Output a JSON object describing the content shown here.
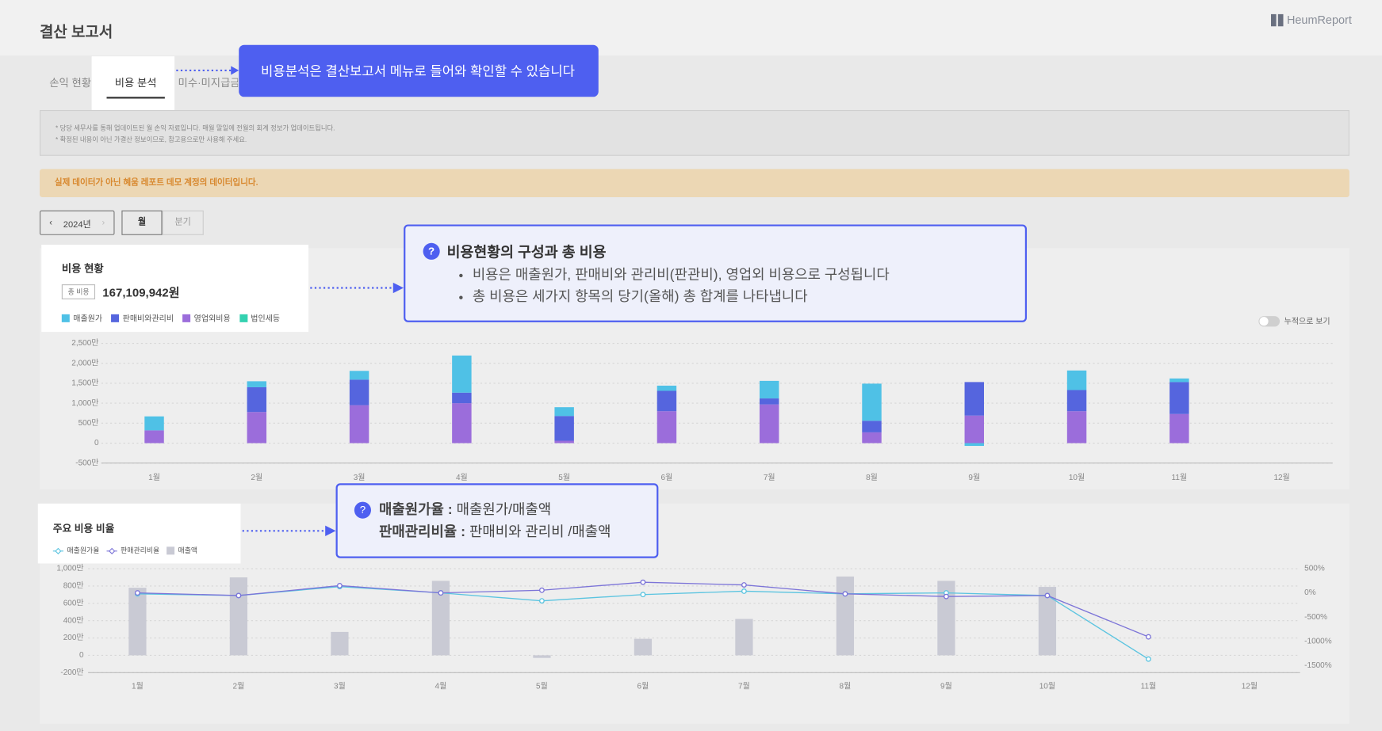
{
  "header": {
    "title": "결산 보고서",
    "logo": "HeumReport"
  },
  "tabs": [
    "손익 현황",
    "비용 분석",
    "미수·미지급금"
  ],
  "tab_tooltip": "비용분석은 결산보고서 메뉴로 들어와 확인할 수 있습니다",
  "notice": [
    "* 당당 세무사를 통해 업데이트된 월 손익 자료입니다. 매월 말일에 전월의 회계 정보가 업데이트됩니다.",
    "* 확정된 내용이 아닌 가결산 정보이므로, 참고용으로만 사용해 주세요."
  ],
  "banner": "실제 데이터가 아닌 혜움 레포트 데모 계정의 데이터입니다.",
  "controls": {
    "year": "2024년",
    "period": [
      "월",
      "분기"
    ]
  },
  "cost_card": {
    "title": "비용 현황",
    "total_label": "총 비용",
    "total": "167,109,942원",
    "toggle": "누적으로 보기"
  },
  "cost_callout": {
    "title": "비용현황의 구성과 총 비용",
    "items": [
      "비용은 매출원가, 판매비와 관리비(판관비), 영업외 비용으로 구성됩니다",
      "총 비용은 세가지 항목의 당기(올해) 총 합계를 나타냅니다"
    ]
  },
  "ratio_card": {
    "title": "주요 비용 비율"
  },
  "ratio_callout": {
    "lines": [
      {
        "term": "매출원가율 :",
        "desc": "매출원가/매출액"
      },
      {
        "term": "판매관리비율 :",
        "desc": "판매비와 관리비 /매출액"
      }
    ]
  },
  "chart_data": [
    {
      "type": "bar",
      "stacked": true,
      "grid": true,
      "categories": [
        "1월",
        "2월",
        "3월",
        "4월",
        "5월",
        "6월",
        "7월",
        "8월",
        "9월",
        "10월",
        "11월",
        "12월"
      ],
      "ylim": [
        -500,
        2500
      ],
      "yticks": [
        {
          "value": -500,
          "label": "-500만"
        },
        0,
        {
          "value": 500,
          "label": "500만"
        },
        {
          "value": 1000,
          "label": "1,000만"
        },
        {
          "value": 1500,
          "label": "1,500만"
        },
        {
          "value": 2000,
          "label": "2,000만"
        },
        {
          "value": 2500,
          "label": "2,500만"
        }
      ],
      "series": [
        {
          "name": "영업외비용",
          "color": "#9b6ddb",
          "values": [
            320,
            780,
            950,
            1000,
            60,
            800,
            970,
            270,
            690,
            800,
            730,
            null
          ]
        },
        {
          "name": "판매비와관리비",
          "color": "#5565de",
          "values": [
            0,
            620,
            640,
            265,
            620,
            510,
            150,
            290,
            840,
            530,
            800,
            null
          ]
        },
        {
          "name": "매출원가",
          "color": "#4fc1e6",
          "values": [
            350,
            150,
            220,
            930,
            220,
            130,
            440,
            930,
            -70,
            490,
            90,
            null
          ]
        },
        {
          "name": "법인세등",
          "color": "#33d1b0",
          "values": [
            0,
            0,
            0,
            0,
            0,
            0,
            0,
            0,
            0,
            0,
            0,
            null
          ]
        }
      ],
      "legend_order": [
        2,
        1,
        0,
        3
      ]
    },
    {
      "type": "combo",
      "grid": true,
      "categories": [
        "1월",
        "2월",
        "3월",
        "4월",
        "5월",
        "6월",
        "7월",
        "8월",
        "9월",
        "10월",
        "11월",
        "12월"
      ],
      "ylim": [
        -200,
        1000
      ],
      "yticks": [
        {
          "value": -200,
          "label": "-200만"
        },
        0,
        {
          "value": 200,
          "label": "200만"
        },
        {
          "value": 400,
          "label": "400만"
        },
        {
          "value": 600,
          "label": "600만"
        },
        {
          "value": 800,
          "label": "800만"
        },
        {
          "value": 1000,
          "label": "1,000만"
        }
      ],
      "y2lim": [
        -1650,
        500
      ],
      "y2ticks": [
        {
          "value": 500,
          "label": "500%"
        },
        {
          "value": 0,
          "label": "0%"
        },
        {
          "value": -500,
          "label": "-500%"
        },
        {
          "value": -1000,
          "label": "-1000%"
        },
        {
          "value": -1500,
          "label": "-1500%"
        }
      ],
      "series": [
        {
          "name": "매출원가율",
          "kind": "line",
          "axis": "y2",
          "color": "#5bc4e0",
          "values": [
            -20,
            -55,
            130,
            0,
            -165,
            -35,
            35,
            -20,
            0,
            -55,
            -1370,
            null
          ]
        },
        {
          "name": "판매관리비율",
          "kind": "line",
          "axis": "y2",
          "color": "#7c74d8",
          "values": [
            0,
            -55,
            150,
            0,
            55,
            220,
            165,
            -20,
            -75,
            -55,
            -910,
            null
          ]
        },
        {
          "name": "매출액",
          "kind": "bar",
          "color": "#c9cad4",
          "values": [
            780,
            900,
            270,
            860,
            -30,
            190,
            420,
            910,
            860,
            790,
            null,
            null
          ]
        }
      ]
    }
  ]
}
